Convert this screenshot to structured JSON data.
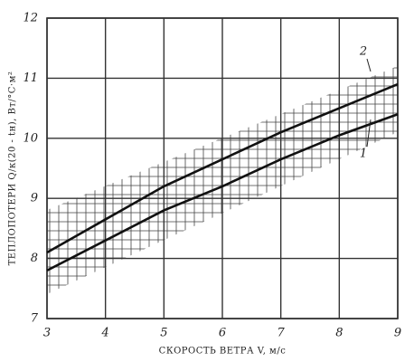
{
  "chart_data": {
    "type": "line",
    "x_label": "СКОРОСТЬ ВЕТРА V, м/с",
    "y_label": "ТЕПЛОПОТЕРИ Q/к(20 - tн), Вт/°С·м²",
    "x": [
      3,
      4,
      5,
      6,
      7,
      8,
      9
    ],
    "series": [
      {
        "name": "1",
        "color": "#111111",
        "values": [
          7.8,
          8.3,
          8.8,
          9.2,
          9.65,
          10.05,
          10.4
        ]
      },
      {
        "name": "2",
        "color": "#111111",
        "values": [
          8.1,
          8.65,
          9.2,
          9.65,
          10.1,
          10.5,
          10.9
        ]
      }
    ],
    "xlim": [
      3,
      9
    ],
    "xticks": [
      3,
      4,
      5,
      6,
      7,
      8,
      9
    ],
    "ylim": [
      7,
      12
    ],
    "yticks": [
      7,
      8,
      9,
      10,
      11,
      12
    ],
    "grid": true
  }
}
